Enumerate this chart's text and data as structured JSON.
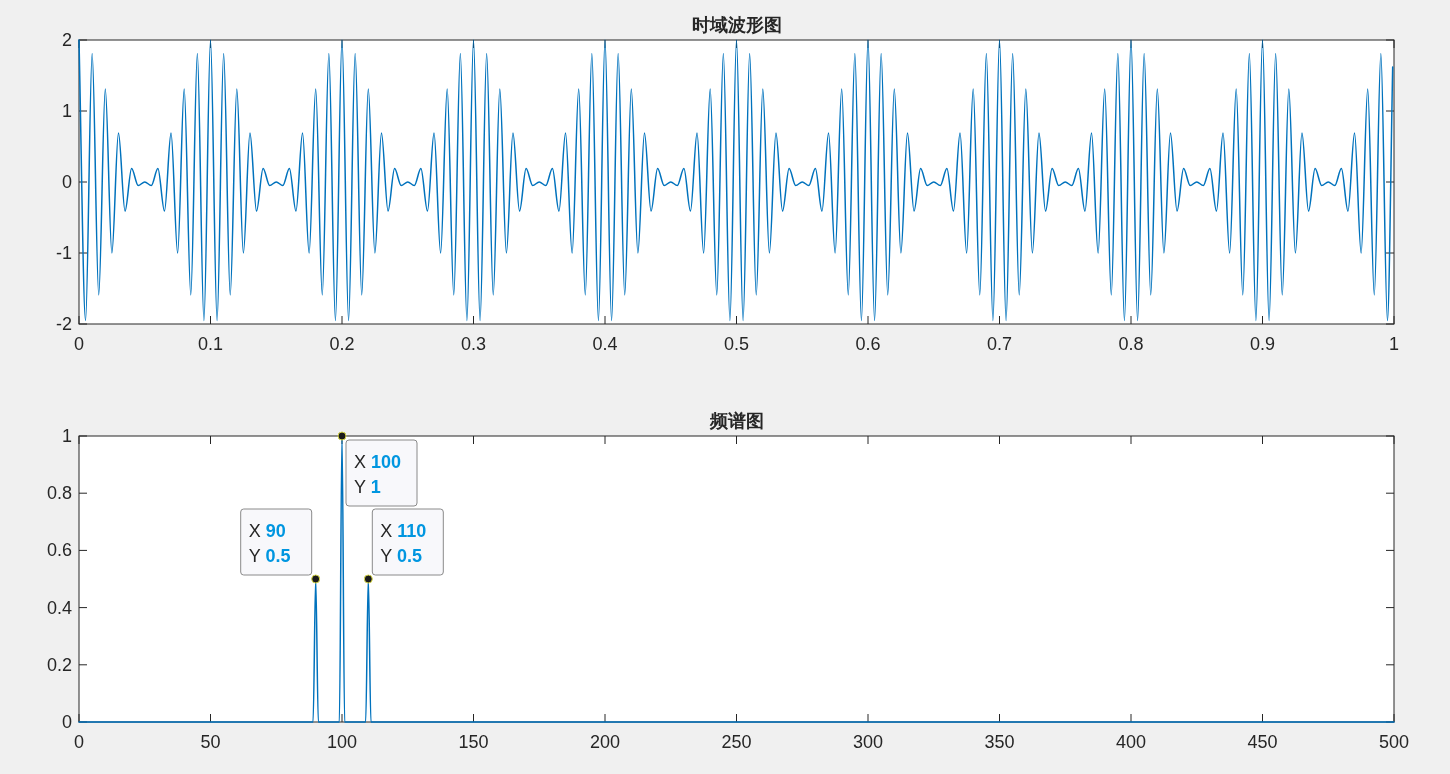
{
  "chart_data": [
    {
      "type": "line",
      "title": "时域波形图",
      "series": [
        {
          "color": "#0072bd",
          "x": [
            0,
            0.005,
            0.01,
            0.015,
            0.02,
            0.025,
            0.03,
            0.035,
            0.04,
            0.045,
            0.05,
            0.055,
            0.06,
            0.065,
            0.07,
            0.075,
            0.08,
            0.085,
            0.09,
            0.095,
            0.1,
            0.105,
            0.11,
            0.115,
            0.12,
            0.125,
            0.13,
            0.135,
            0.14,
            0.145,
            0.15,
            0.155,
            0.16,
            0.165,
            0.17,
            0.175,
            0.18,
            0.185,
            0.19,
            0.195,
            0.2,
            0.205,
            0.21,
            0.215,
            0.22,
            0.225,
            0.23,
            0.235,
            0.24,
            0.245,
            0.25,
            0.255,
            0.26,
            0.265,
            0.27,
            0.275,
            0.28,
            0.285,
            0.29,
            0.295,
            0.3,
            0.305,
            0.31,
            0.315,
            0.32,
            0.325,
            0.33,
            0.335,
            0.34,
            0.345,
            0.35,
            0.355,
            0.36,
            0.365,
            0.37,
            0.375,
            0.38,
            0.385,
            0.39,
            0.395,
            0.4,
            0.405,
            0.41,
            0.415,
            0.42,
            0.425,
            0.43,
            0.435,
            0.44,
            0.445,
            0.45,
            0.455,
            0.46,
            0.465,
            0.47,
            0.475,
            0.48,
            0.485,
            0.49,
            0.495,
            0.5,
            0.505,
            0.51,
            0.515,
            0.52,
            0.525,
            0.53,
            0.535,
            0.54,
            0.545,
            0.55,
            0.555,
            0.56,
            0.565,
            0.57,
            0.575,
            0.58,
            0.585,
            0.59,
            0.595,
            0.6,
            0.605,
            0.61,
            0.615,
            0.62,
            0.625,
            0.63,
            0.635,
            0.64,
            0.645,
            0.65,
            0.655,
            0.66,
            0.665,
            0.67,
            0.675,
            0.68,
            0.685,
            0.69,
            0.695,
            0.7,
            0.705,
            0.71,
            0.715,
            0.72,
            0.725,
            0.73,
            0.735,
            0.74,
            0.745,
            0.75,
            0.755,
            0.76,
            0.765,
            0.77,
            0.775,
            0.78,
            0.785,
            0.79,
            0.795,
            0.8,
            0.805,
            0.81,
            0.815,
            0.82,
            0.825,
            0.83,
            0.835,
            0.84,
            0.845,
            0.85,
            0.855,
            0.86,
            0.865,
            0.87,
            0.875,
            0.88,
            0.885,
            0.89,
            0.895,
            0.9,
            0.905,
            0.91,
            0.915,
            0.92,
            0.925,
            0.93,
            0.935,
            0.94,
            0.945,
            0.95,
            0.955,
            0.96,
            0.965,
            0.97,
            0.975,
            0.98,
            0.985,
            0.99,
            0.995,
            0.999
          ],
          "values": [
            2,
            -1.95,
            1.81,
            -1.59,
            1.31,
            -1,
            0.69,
            -0.41,
            0.19,
            -0.05,
            0,
            -0.05,
            0.19,
            -0.41,
            0.69,
            -1,
            1.31,
            -1.59,
            1.81,
            -1.95,
            2,
            -1.95,
            1.81,
            -1.59,
            1.31,
            -1,
            0.69,
            -0.41,
            0.19,
            -0.05,
            0,
            -0.05,
            0.19,
            -0.41,
            0.69,
            -1,
            1.31,
            -1.59,
            1.81,
            -1.95,
            2,
            -1.95,
            1.81,
            -1.59,
            1.31,
            -1,
            0.69,
            -0.41,
            0.19,
            -0.05,
            0,
            -0.05,
            0.19,
            -0.41,
            0.69,
            -1,
            1.31,
            -1.59,
            1.81,
            -1.95,
            2,
            -1.95,
            1.81,
            -1.59,
            1.31,
            -1,
            0.69,
            -0.41,
            0.19,
            -0.05,
            0,
            -0.05,
            0.19,
            -0.41,
            0.69,
            -1,
            1.31,
            -1.59,
            1.81,
            -1.95,
            2,
            -1.95,
            1.81,
            -1.59,
            1.31,
            -1,
            0.69,
            -0.41,
            0.19,
            -0.05,
            0,
            -0.05,
            0.19,
            -0.41,
            0.69,
            -1,
            1.31,
            -1.59,
            1.81,
            -1.95,
            2,
            -1.95,
            1.81,
            -1.59,
            1.31,
            -1,
            0.69,
            -0.41,
            0.19,
            -0.05,
            0,
            -0.05,
            0.19,
            -0.41,
            0.69,
            -1,
            1.31,
            -1.59,
            1.81,
            -1.95,
            2,
            -1.95,
            1.81,
            -1.59,
            1.31,
            -1,
            0.69,
            -0.41,
            0.19,
            -0.05,
            0,
            -0.05,
            0.19,
            -0.41,
            0.69,
            -1,
            1.31,
            -1.59,
            1.81,
            -1.95,
            2,
            -1.95,
            1.81,
            -1.59,
            1.31,
            -1,
            0.69,
            -0.41,
            0.19,
            -0.05,
            0,
            -0.05,
            0.19,
            -0.41,
            0.69,
            -1,
            1.31,
            -1.59,
            1.81,
            -1.95,
            2,
            -1.95,
            1.81,
            -1.59,
            1.31,
            -1,
            0.69,
            -0.41,
            0.19,
            -0.05,
            0,
            -0.05,
            0.19,
            -0.41,
            0.69,
            -1,
            1.31,
            -1.59,
            1.81,
            -1.95,
            2,
            -1.95,
            1.81,
            -1.59,
            1.31,
            -1,
            0.69,
            -0.41,
            0.19,
            -0.05,
            0,
            -0.05,
            0.19,
            -0.41,
            0.69,
            -1,
            1.31,
            -1.59,
            1.81,
            -1.95,
            1.62
          ]
        }
      ],
      "xlim": [
        0,
        1
      ],
      "xticks": [
        0,
        0.1,
        0.2,
        0.3,
        0.4,
        0.5,
        0.6,
        0.7,
        0.8,
        0.9,
        1
      ],
      "ylim": [
        -2,
        2
      ],
      "yticks": [
        -2,
        -1,
        0,
        1,
        2
      ],
      "grid": false
    },
    {
      "type": "line",
      "title": "频谱图",
      "series": [
        {
          "color": "#0072bd",
          "x": [
            0,
            89,
            90,
            91,
            99,
            100,
            101,
            109,
            110,
            111,
            500
          ],
          "values": [
            0,
            0,
            0.5,
            0,
            0,
            1,
            0,
            0,
            0.5,
            0,
            0
          ]
        }
      ],
      "xlim": [
        0,
        500
      ],
      "xticks": [
        0,
        50,
        100,
        150,
        200,
        250,
        300,
        350,
        400,
        450,
        500
      ],
      "ylim": [
        0,
        1
      ],
      "yticks": [
        0,
        0.2,
        0.4,
        0.6,
        0.8,
        1
      ],
      "grid": false,
      "annotations": [
        {
          "text": "X 90\nY 0.5",
          "x": 90,
          "y": 0.5
        },
        {
          "text": "X 100\nY 1",
          "x": 100,
          "y": 1
        },
        {
          "text": "X 110\nY 0.5",
          "x": 110,
          "y": 0.5
        }
      ]
    }
  ]
}
